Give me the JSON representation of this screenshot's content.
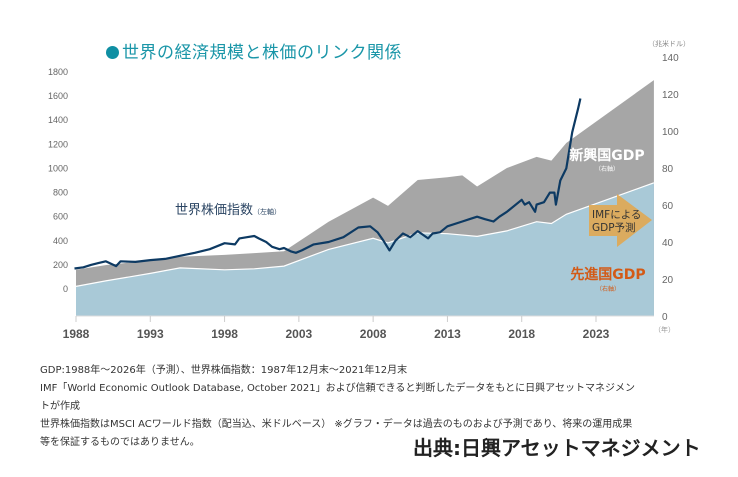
{
  "title": "世界の経済規模と株価のリンク関係",
  "chart_data": {
    "type": "area",
    "title": "世界の経済規模と株価のリンク関係",
    "x_ticks": [
      "1988",
      "1993",
      "1998",
      "2003",
      "2008",
      "2013",
      "2018",
      "2023"
    ],
    "x_unit": "（年）",
    "xlim": [
      1988,
      2026.9
    ],
    "left_axis": {
      "label": "世界株価指数（左軸）",
      "ticks": [
        0,
        200,
        400,
        600,
        800,
        1000,
        1200,
        1400,
        1600,
        1800
      ],
      "ylim": [
        -220,
        1800
      ]
    },
    "right_axis": {
      "unit": "（兆米ドル）",
      "ticks": [
        0,
        20,
        40,
        60,
        80,
        100,
        120,
        140
      ],
      "ylim": [
        0,
        140
      ]
    },
    "grid": false,
    "series": [
      {
        "name": "先進国GDP",
        "sub": "（右軸）",
        "type": "area",
        "axis": "right",
        "color": "#a9c9d7",
        "x": [
          1988,
          1990,
          1993,
          1995,
          1998,
          2000,
          2002,
          2005,
          2008,
          2009,
          2011,
          2013,
          2015,
          2017,
          2019,
          2020,
          2021,
          2026.9
        ],
        "values": [
          16,
          19,
          23,
          26,
          25,
          25.5,
          27,
          36,
          42,
          39.5,
          45,
          44.5,
          43,
          46,
          51,
          50,
          55,
          72
        ]
      },
      {
        "name": "新興国GDP",
        "sub": "（右軸）",
        "type": "area-stacked-total",
        "axis": "right",
        "color": "#a6a6a6",
        "x": [
          1988,
          1990,
          1993,
          1995,
          1998,
          2000,
          2002,
          2005,
          2008,
          2009,
          2011,
          2013,
          2014,
          2015,
          2017,
          2019,
          2020,
          2021,
          2026.9
        ],
        "values": [
          25,
          27.5,
          30,
          32,
          33,
          34,
          35,
          51,
          64,
          59.5,
          73.5,
          75,
          76,
          70,
          80,
          86,
          84,
          93.5,
          127.5
        ]
      },
      {
        "name": "世界株価指数",
        "sub": "（左軸）",
        "type": "line",
        "axis": "left",
        "color": "#0d3a63",
        "x": [
          1987.9,
          1988.5,
          1989,
          1989.5,
          1990,
          1990.7,
          1991,
          1992,
          1993,
          1994,
          1995,
          1996,
          1997,
          1998,
          1998.7,
          1999,
          1999.5,
          2000,
          2000.3,
          2000.8,
          2001.2,
          2001.7,
          2002,
          2002.5,
          2002.8,
          2003.2,
          2004,
          2005,
          2006,
          2007,
          2007.8,
          2008.3,
          2008.7,
          2009.1,
          2009.5,
          2010,
          2010.5,
          2011,
          2011.7,
          2012,
          2012.5,
          2013,
          2014,
          2014.5,
          2015,
          2015.5,
          2016.1,
          2016.5,
          2017,
          2018,
          2018.2,
          2018.5,
          2018.9,
          2019,
          2019.5,
          2019.9,
          2020.2,
          2020.3,
          2020.6,
          2021,
          2021.4,
          2021.8,
          2021.95
        ],
        "values": [
          170,
          180,
          200,
          215,
          230,
          190,
          230,
          225,
          240,
          250,
          275,
          300,
          330,
          380,
          370,
          420,
          430,
          440,
          420,
          390,
          350,
          330,
          340,
          310,
          300,
          320,
          370,
          390,
          430,
          510,
          520,
          470,
          400,
          320,
          400,
          460,
          430,
          480,
          420,
          460,
          470,
          520,
          560,
          580,
          600,
          580,
          560,
          600,
          640,
          740,
          700,
          720,
          640,
          700,
          720,
          800,
          800,
          700,
          900,
          1000,
          1300,
          1500,
          1580
        ]
      }
    ],
    "annotations": [
      {
        "text": "世界株価指数",
        "sub": "（左軸）"
      },
      {
        "text": "新興国GDP",
        "sub": "（右軸）"
      },
      {
        "text": "先進国GDP",
        "sub": "（右軸）"
      },
      {
        "text": "IMFによる\nGDP予測",
        "lines": [
          "IMFによる",
          "GDP予測"
        ],
        "color": "#e0a855"
      }
    ]
  },
  "notes": [
    "GDP:1988年～2026年（予測）、世界株価指数：1987年12月末～2021年12月末",
    "IMF「World Economic Outlook Database, October 2021」および信頼できると判断したデータをもとに日興アセットマネジメン",
    "トが作成",
    "世界株価指数はMSCI ACワールド指数（配当込、米ドルベース） ※グラフ・データは過去のものおよび予測であり、将来の運用成果",
    "等を保証するものではありません。"
  ],
  "source": "出典:日興アセットマネジメント"
}
